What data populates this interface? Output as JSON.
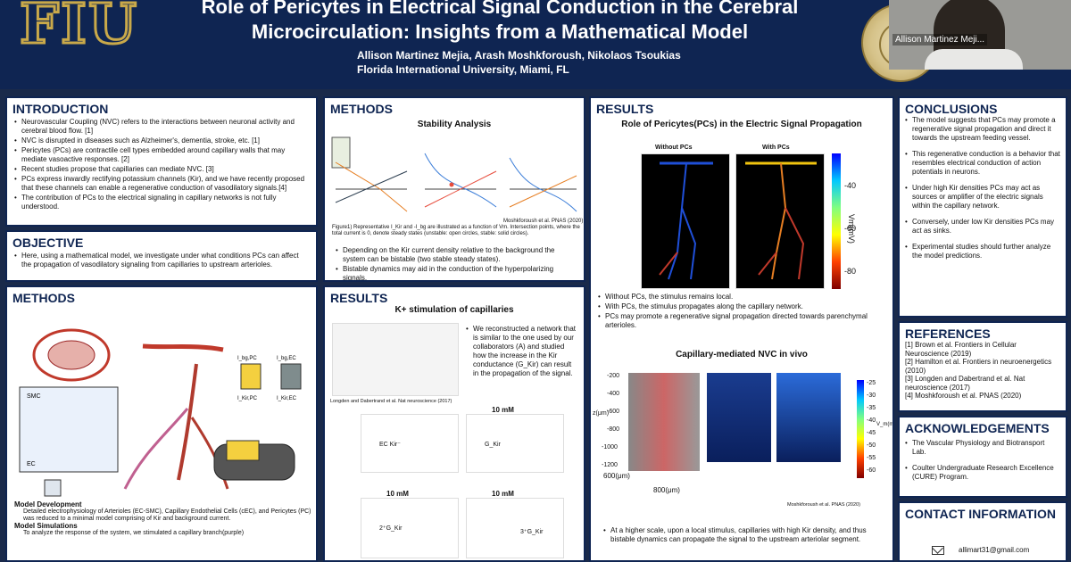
{
  "header": {
    "logo": "FIU",
    "title_line1": "Role of Pericytes in Electrical Signal Conduction in the Cerebral",
    "title_line2": "Microcirculation: Insights from a Mathematical Model",
    "authors": "Allison Martinez Mejia, Arash Moshkforoush, Nikolaos Tsoukias",
    "affiliation": "Florida International University, Miami, FL"
  },
  "video": {
    "participant_name": "Allison Martinez Meji..."
  },
  "introduction": {
    "heading": "INTRODUCTION",
    "bullets": [
      "Neurovascular Coupling (NVC) refers to the interactions between neuronal activity and cerebral blood flow. [1]",
      "NVC is disrupted in diseases such as Alzheimer's, dementia, stroke, etc. [1]",
      "Pericytes (PCs) are contractile cell types embedded around capillary walls that may mediate vasoactive responses. [2]",
      "Recent studies propose that capillaries can mediate NVC. [3]",
      "PCs express inwardly rectifying potassium channels (Kir), and we have recently proposed that these channels can enable a regenerative conduction of vasodilatory signals.[4]",
      "The contribution of PCs to the electrical signaling in capillary networks is not fully understood."
    ]
  },
  "objective": {
    "heading": "OBJECTIVE",
    "bullets": [
      "Here, using a mathematical model, we investigate  under what conditions PCs can affect the propagation of vasodilatory signaling from capillaries to upstream arterioles."
    ]
  },
  "methods_left": {
    "heading": "METHODS",
    "fig_labels": [
      "SMC",
      "EC",
      "I_bg,PC",
      "I_Kir,PC",
      "I_bg,EC",
      "I_Kir,EC"
    ],
    "model_dev_title": "Model Development",
    "model_dev_text": "Detailed electrophysiology of Arterioles (EC-SMC), Capillary Endothelial Cells (cEC), and Pericytes (PC) was reduced to a minimal model comprising of Kir and background current.",
    "model_sim_title": "Model Simulations",
    "model_sim_text": "To analyze the response of the system, we stimulated a capillary branch(purple)"
  },
  "methods_mid": {
    "heading": "METHODS",
    "subtitle": "Stability Analysis",
    "caption": "Figure1) Representative I_Kir and -I_bg are illustrated as a function of Vm. Intersection points, where the total current is 0, denote steady states (unstable: open circles, stable: solid circles).",
    "credit": "Moshkforoush et al. PNAS (2020)",
    "bullets": [
      "Depending on the Kir current density relative to the background the system can be bistable (two stable steady states).",
      "Bistable dynamics may aid in the conduction of the hyperpolarizing signals."
    ]
  },
  "results_mid": {
    "heading": "RESULTS",
    "subtitle": "K+ stimulation of capillaries",
    "text": "We reconstructed a network that is similar to the one used by our collaborators (A) and studied how the increase in the Kir conductance (G_Kir) can result in the propagation of the signal.",
    "credit": "Longden and Dabertrand et al. Nat neuroscience (2017)",
    "traces": [
      "EC Kir⁻",
      "G_Kir",
      "2⁺G_Kir",
      "3⁺G_Kir"
    ],
    "stim_labels": [
      "10 mM",
      "10 mM",
      "10 mM"
    ]
  },
  "results_right": {
    "heading": "RESULTS",
    "subtitle": "Role of  Pericytes(PCs) in the Electric Signal Propagation",
    "without_label": "Without PCs",
    "with_label": "With PCs",
    "colorbar_label": "Vm(mV)",
    "colorbar_ticks": [
      "-40",
      "-60",
      "-80"
    ],
    "bullets": [
      "Without PCs, the stimulus remains local.",
      "With PCs, the stimulus propagates along the capillary network.",
      "PCs may promote a regenerative signal propagation directed towards parenchymal arterioles."
    ],
    "subtitle2": "Capillary-mediated NVC in vivo",
    "z_label": "z(μm)",
    "z_ticks": [
      "-200",
      "-400",
      "-600",
      "-800",
      "-1000",
      "-1200"
    ],
    "x_label": "800(μm)",
    "y_label": "600(μm)",
    "cb2_label": "V_m(mV)",
    "cb2_ticks": [
      "-25",
      "-30",
      "-35",
      "-40",
      "-45",
      "-50",
      "-55",
      "-60"
    ],
    "credit2": "Moshkforoush et al. PNAS (2020)",
    "bullet2": "At a higher scale, upon a local stimulus, capillaries with high Kir density, and thus bistable dynamics can propagate the signal to the upstream arteriolar segment."
  },
  "conclusions": {
    "heading": "CONCLUSIONS",
    "items": [
      "The model suggests that PCs may promote a regenerative signal propagation and direct it towards the upstream feeding vessel.",
      "This regenerative conduction is a behavior that resembles electrical conduction of action potentials in neurons.",
      "Under high Kir densities PCs may act as sources or amplifier of the electric signals within the capillary network.",
      "Conversely, under low Kir densities PCs may act as sinks.",
      "Experimental studies should further analyze the model predictions."
    ]
  },
  "references": {
    "heading": "REFERENCES",
    "items": [
      "[1] Brown et al. Frontiers in Cellular Neuroscience (2019)",
      "[2] Hamilton et al. Frontiers in neuroenergetics (2010)",
      "[3] Longden and Dabertrand et al. Nat neuroscience (2017)",
      "[4] Moshkforoush et al. PNAS (2020)"
    ]
  },
  "acknowledgements": {
    "heading": "ACKNOWLEDGEMENTS",
    "items": [
      "The Vascular Physiology and Biotransport Lab.",
      "Coulter Undergraduate Research Excellence (CURE) Program."
    ]
  },
  "contact": {
    "heading": "CONTACT INFORMATION",
    "email": "allimart31@gmail.com"
  },
  "colors": {
    "navy": "#0f2552",
    "gold": "#c9a94a"
  }
}
